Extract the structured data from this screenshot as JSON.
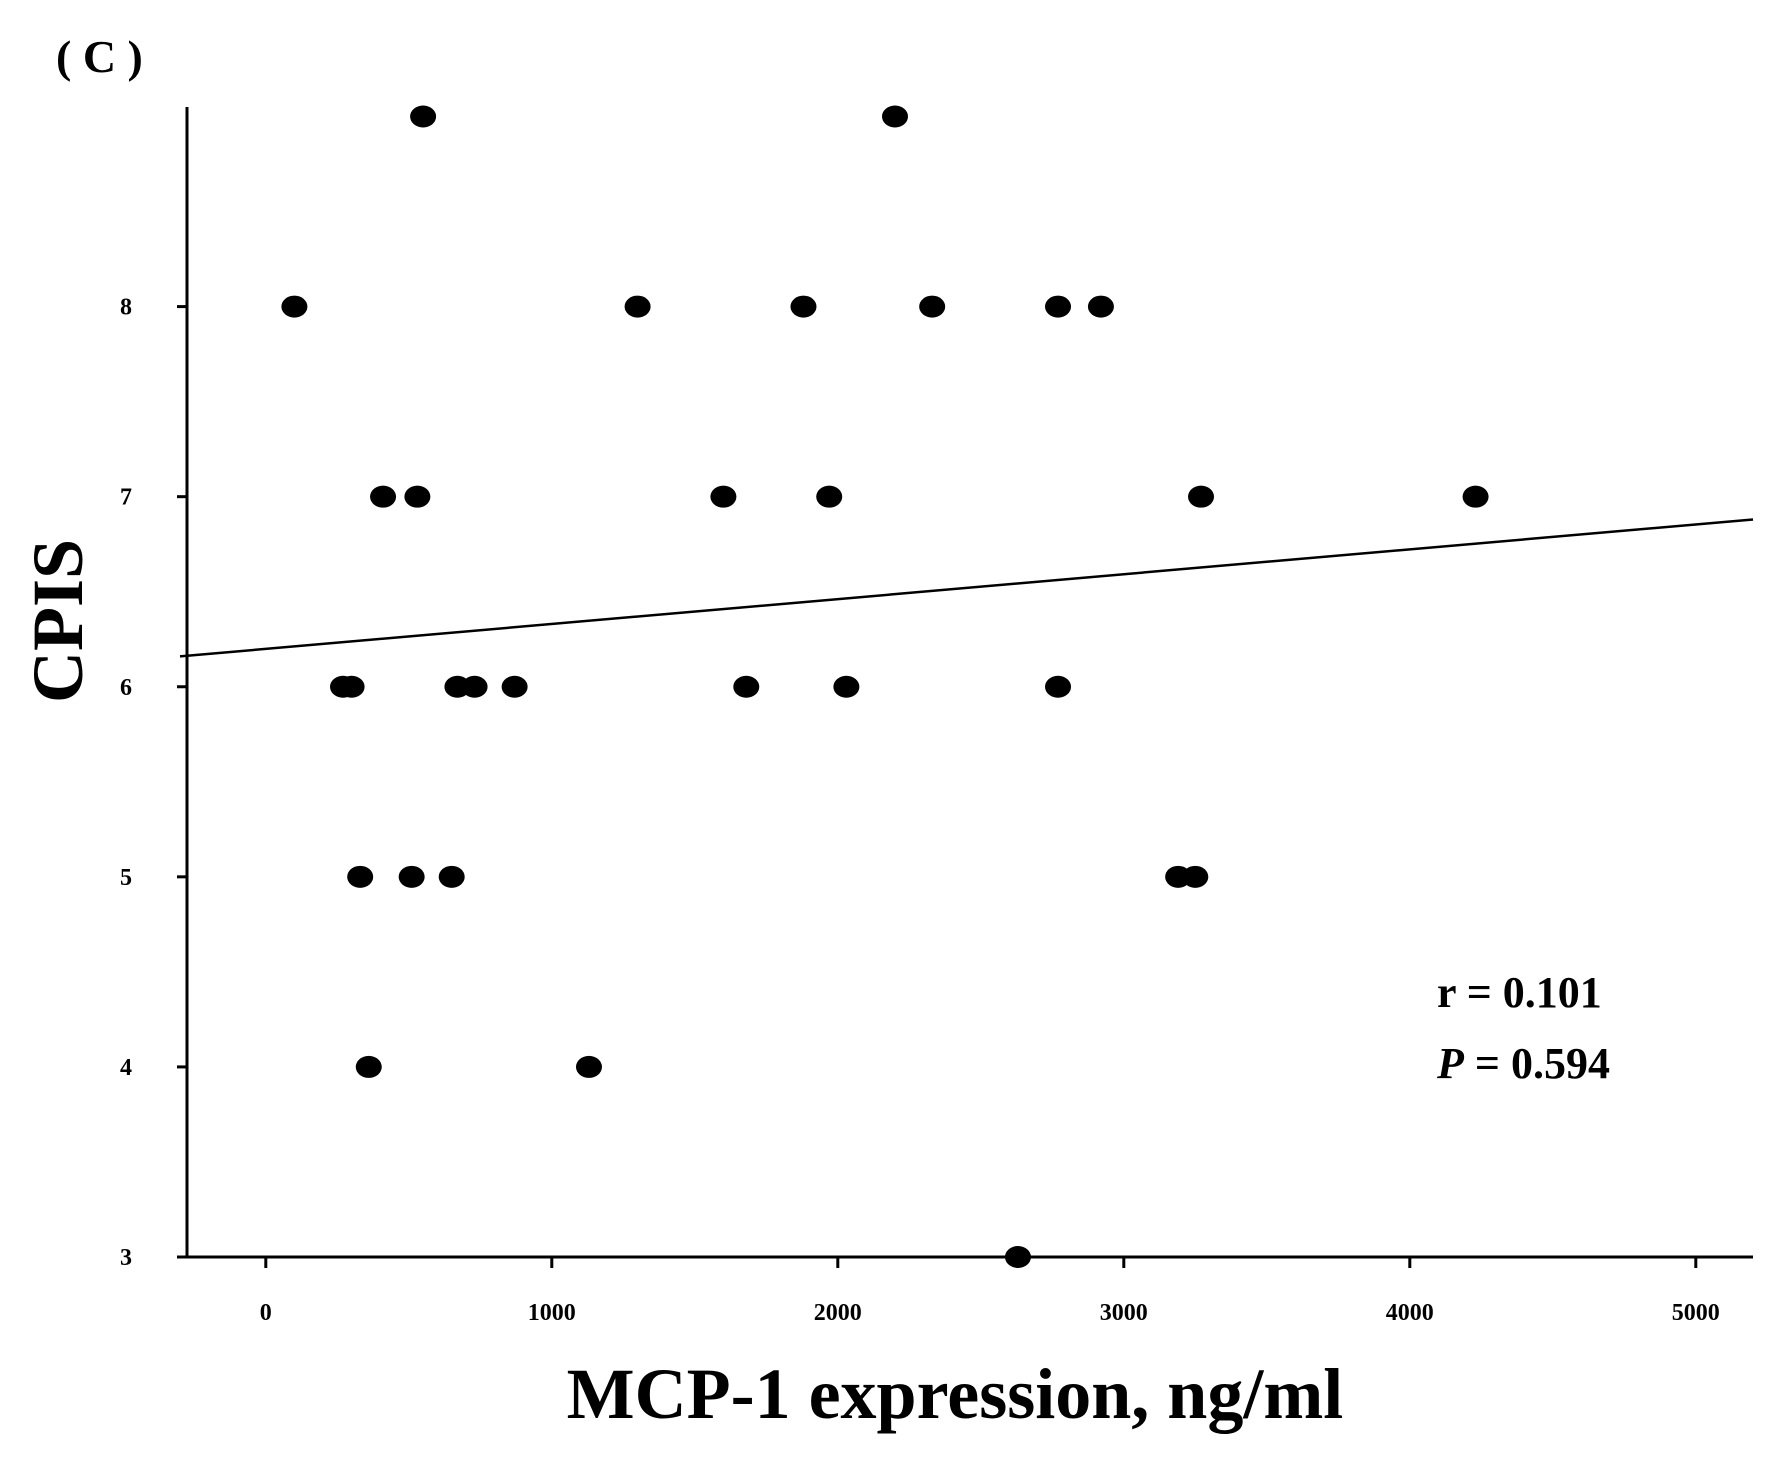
{
  "panel_label": "( C )",
  "chart_data": {
    "type": "scatter",
    "xlabel": "MCP-1 expression, ng/ml",
    "ylabel": "CPIS",
    "xlim": [
      -300,
      5200
    ],
    "ylim": [
      3,
      9.15
    ],
    "x_ticks": [
      0,
      1000,
      2000,
      3000,
      4000,
      5000
    ],
    "x_tick_labels": [
      "0",
      "1000",
      "2000",
      "3000",
      "4000",
      "5000"
    ],
    "y_ticks": [
      3,
      4,
      5,
      6,
      7,
      8
    ],
    "y_tick_labels": [
      "3",
      "4",
      "5",
      "6",
      "7",
      "8"
    ],
    "grid": false,
    "points": [
      {
        "x": 550,
        "y": 9
      },
      {
        "x": 2200,
        "y": 9
      },
      {
        "x": 100,
        "y": 8
      },
      {
        "x": 1300,
        "y": 8
      },
      {
        "x": 1880,
        "y": 8
      },
      {
        "x": 2330,
        "y": 8
      },
      {
        "x": 2770,
        "y": 8
      },
      {
        "x": 2920,
        "y": 8
      },
      {
        "x": 410,
        "y": 7
      },
      {
        "x": 530,
        "y": 7
      },
      {
        "x": 1600,
        "y": 7
      },
      {
        "x": 1970,
        "y": 7
      },
      {
        "x": 3270,
        "y": 7
      },
      {
        "x": 4230,
        "y": 7
      },
      {
        "x": 270,
        "y": 6
      },
      {
        "x": 300,
        "y": 6
      },
      {
        "x": 670,
        "y": 6
      },
      {
        "x": 730,
        "y": 6
      },
      {
        "x": 870,
        "y": 6
      },
      {
        "x": 1680,
        "y": 6
      },
      {
        "x": 2030,
        "y": 6
      },
      {
        "x": 2770,
        "y": 6
      },
      {
        "x": 330,
        "y": 5
      },
      {
        "x": 510,
        "y": 5
      },
      {
        "x": 650,
        "y": 5
      },
      {
        "x": 3190,
        "y": 5
      },
      {
        "x": 3250,
        "y": 5
      },
      {
        "x": 360,
        "y": 4
      },
      {
        "x": 1130,
        "y": 4
      },
      {
        "x": 2630,
        "y": 3
      }
    ],
    "trendline": {
      "x": [
        -300,
        5200
      ],
      "y": [
        6.16,
        6.88
      ]
    },
    "annotations": {
      "r_text": "r = 0.101",
      "p_label": "P",
      "p_text": " = 0.594"
    }
  }
}
